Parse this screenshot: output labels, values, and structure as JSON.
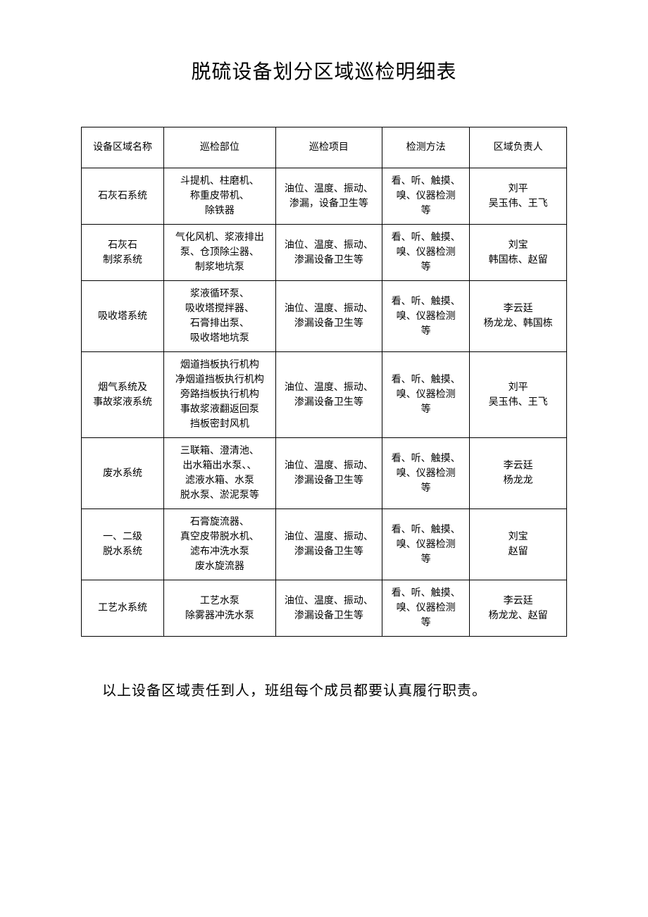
{
  "document": {
    "title": "脱硫设备划分区域巡检明细表",
    "footer_note": "以上设备区域责任到人，班组每个成员都要认真履行职责。"
  },
  "table": {
    "headers": {
      "area": "设备区域名称",
      "part": "巡检部位",
      "item": "巡检项目",
      "method": "检测方法",
      "person": "区域负责人"
    },
    "rows": [
      {
        "area": "石灰石系统",
        "part": "斗提机、柱磨机、\n称重皮带机、\n除铁器",
        "item": "油位、温度、振动、\n渗漏，设备卫生等",
        "method": "看、听、触摸、\n嗅、仪器检测\n等",
        "person": "刘平\n吴玉伟、王飞"
      },
      {
        "area": "石灰石\n制浆系统",
        "part": "气化风机、浆液排出\n泵、仓顶除尘器、\n制浆地坑泵",
        "item": "油位、温度、振动、\n渗漏设备卫生等",
        "method": "看、听、触摸、\n嗅、仪器检测\n等",
        "person": "刘宝\n韩国栋、赵留"
      },
      {
        "area": "吸收塔系统",
        "part": "浆液循环泵、\n吸收塔搅拌器、\n石膏排出泵、\n吸收塔地坑泵",
        "item": "油位、温度、振动、\n渗漏设备卫生等",
        "method": "看、听、触摸、\n嗅、仪器检测\n等",
        "person": "李云廷\n杨龙龙、韩国栋"
      },
      {
        "area": "烟气系统及\n事故浆液系统",
        "part": "烟道挡板执行机构\n净烟道挡板执行机构\n旁路挡板执行机构\n事故浆液翻返回泵\n挡板密封风机",
        "item": "油位、温度、振动、\n渗漏设备卫生等",
        "method": "看、听、触摸、\n嗅、仪器检测\n等",
        "person": "刘平\n吴玉伟、王飞"
      },
      {
        "area": "废水系统",
        "part": "三联箱、澄清池、\n出水箱出水泵、、\n滤液水箱、水泵\n脱水泵、淤泥泵等",
        "item": "油位、温度、振动、\n渗漏设备卫生等",
        "method": "看、听、触摸、\n嗅、仪器检测\n等",
        "person": "李云廷\n杨龙龙"
      },
      {
        "area": "一、二级\n脱水系统",
        "part": "石膏旋流器、\n真空皮带脱水机、\n滤布冲洗水泵\n废水旋流器",
        "item": "油位、温度、振动、\n渗漏设备卫生等",
        "method": "看、听、触摸、\n嗅、仪器检测\n等",
        "person": "刘宝\n赵留"
      },
      {
        "area": "工艺水系统",
        "part": "工艺水泵\n除雾器冲洗水泵",
        "item": "油位、温度、振动、\n渗漏设备卫生等",
        "method": "看、听、触摸、\n嗅、仪器检测\n等",
        "person": "李云廷\n杨龙龙、赵留"
      }
    ]
  },
  "style": {
    "background_color": "#ffffff",
    "text_color": "#000000",
    "border_color": "#000000",
    "title_fontsize": 28,
    "body_fontsize": 14,
    "footer_fontsize": 20
  }
}
